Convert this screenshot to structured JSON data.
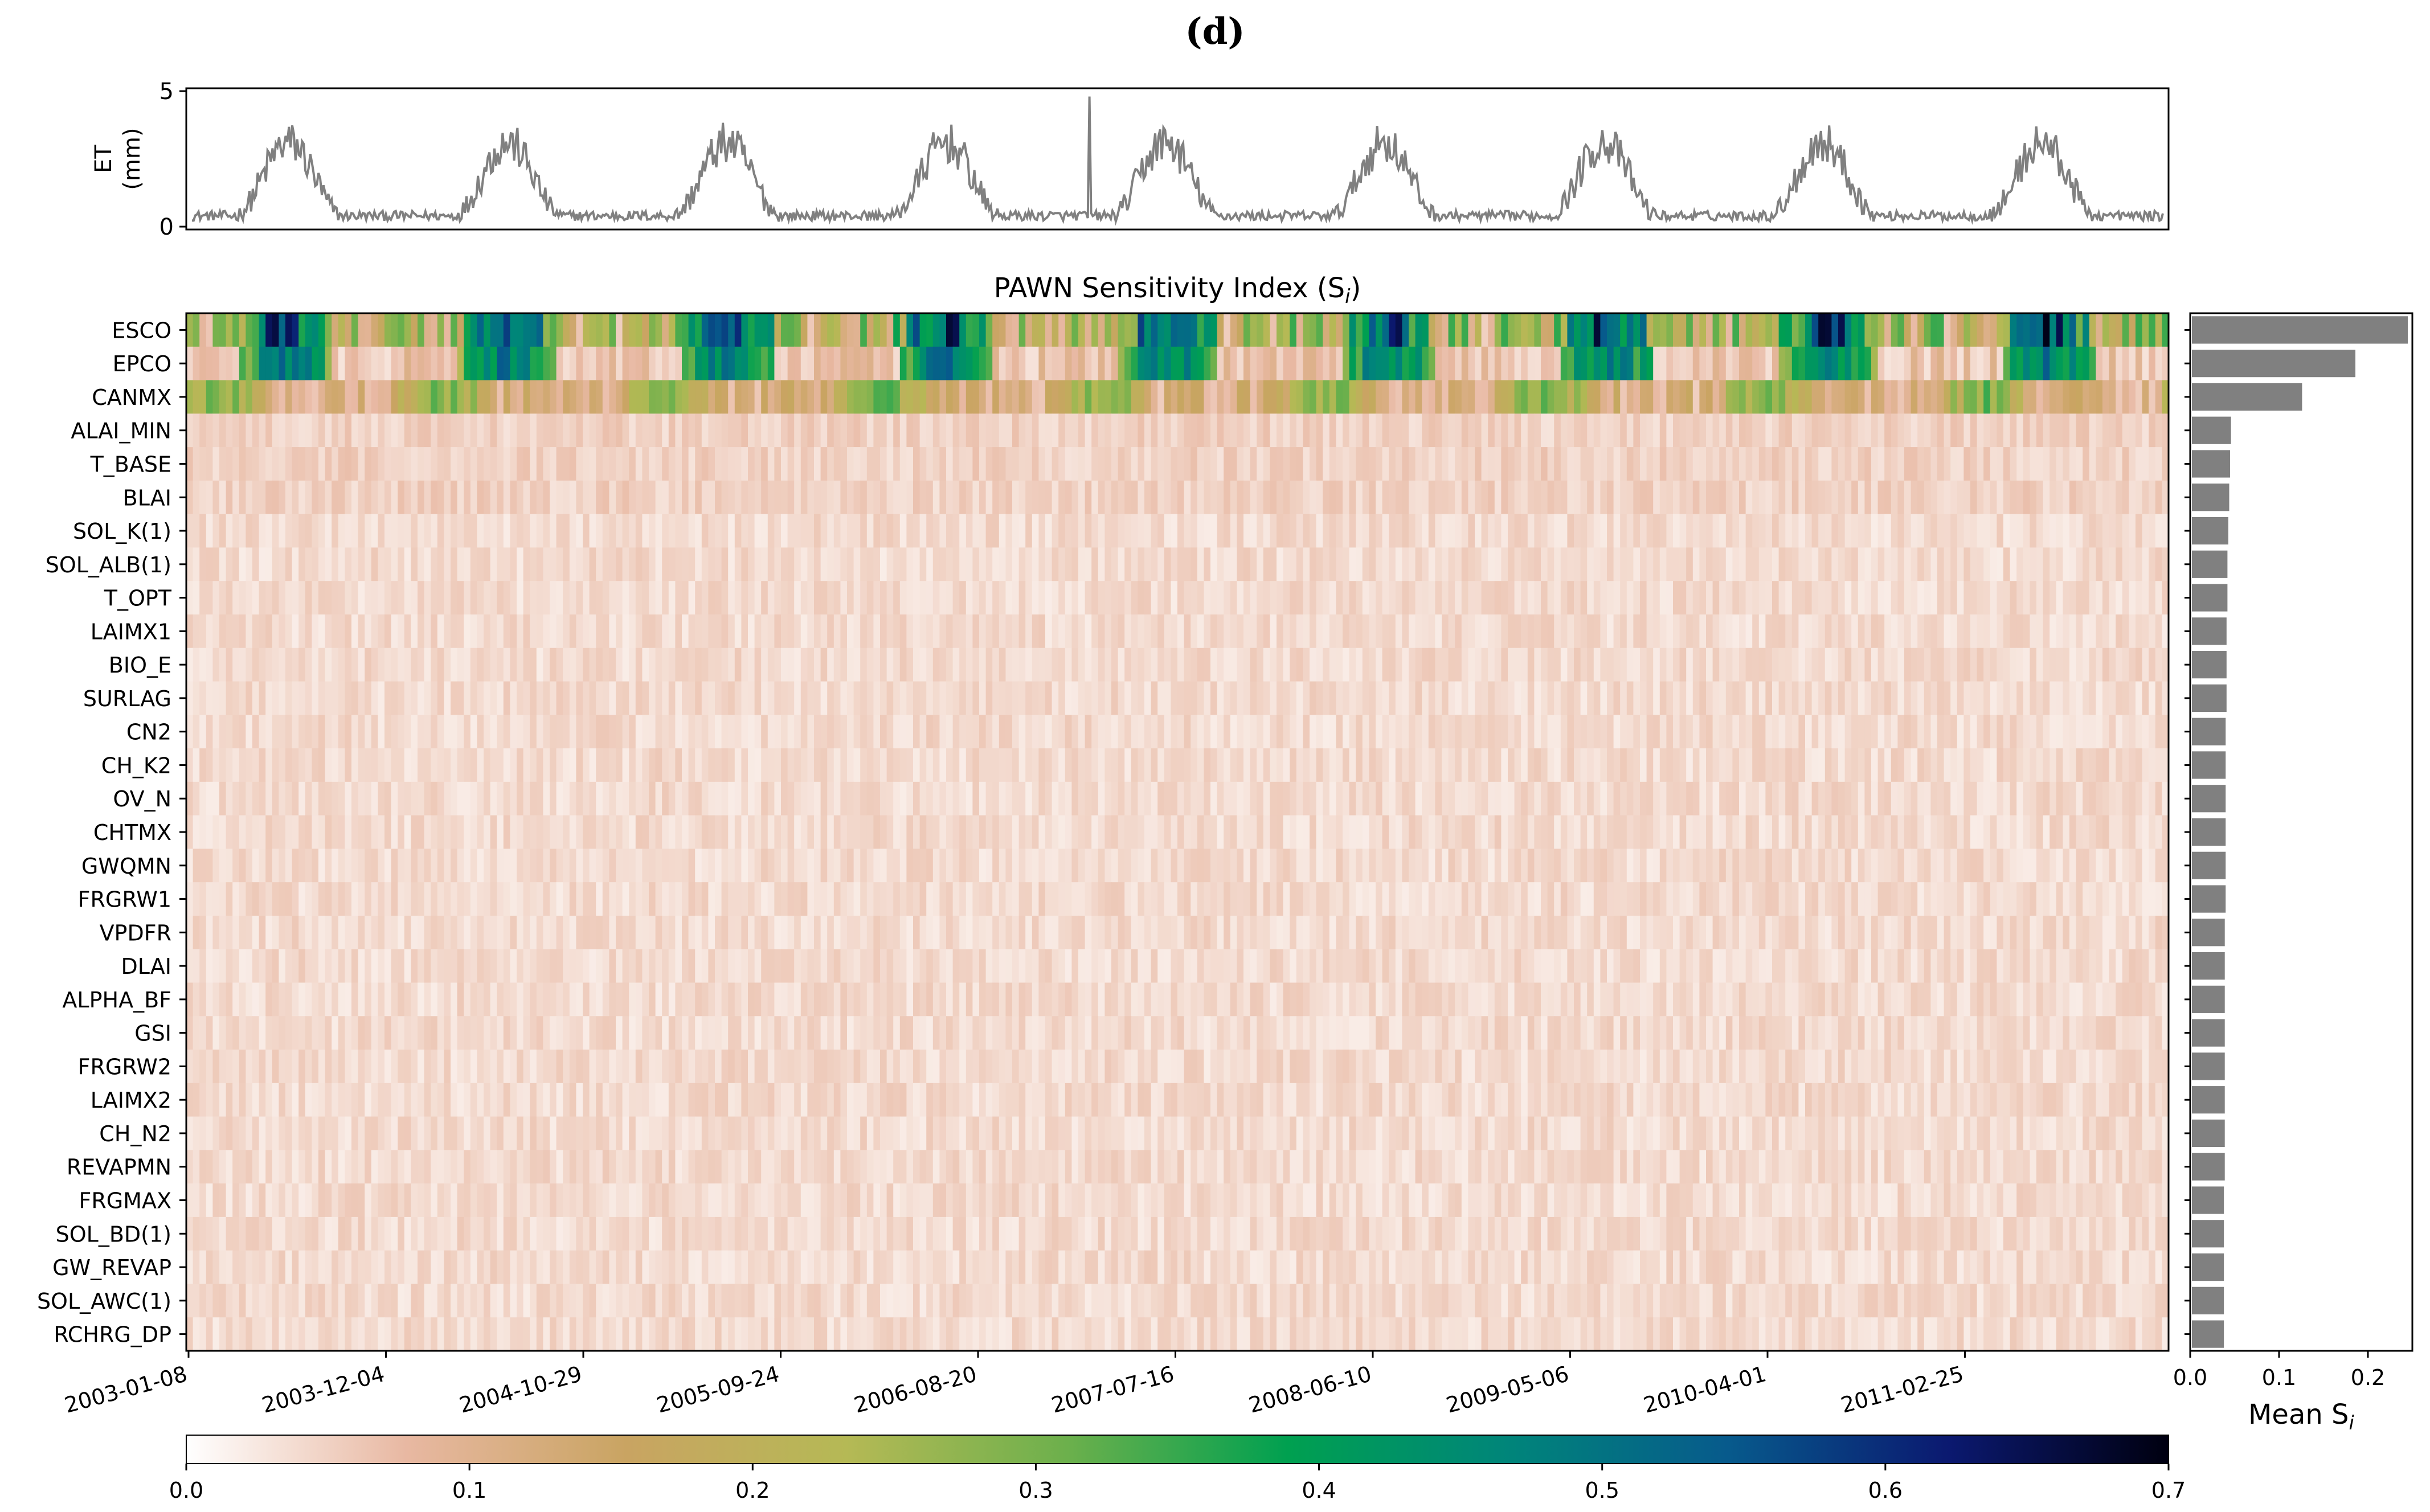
{
  "panel_label": "(d)",
  "colors": {
    "line": "#808080",
    "bar": "#808080",
    "axis": "#000000"
  },
  "chart_data": [
    {
      "type": "line",
      "name": "et-timeseries",
      "ylabel_line1": "ET",
      "ylabel_line2": "(mm)",
      "ylim": [
        0,
        5
      ],
      "yticks": [
        "0",
        "5"
      ],
      "description_of_series": "daily ET, seasonal cycle 2003-2011",
      "seasonal_cycle": {
        "years": 9,
        "base": 0.4,
        "summer_peak": 3.1,
        "max_spike": 4.8
      }
    },
    {
      "type": "heatmap",
      "name": "pawn-heatmap",
      "title_prefix": "PAWN Sensitivity Index (S",
      "title_sub": "i",
      "title_suffix": ")",
      "parameters": [
        "ESCO",
        "EPCO",
        "CANMX",
        "ALAI_MIN",
        "T_BASE",
        "BLAI",
        "SOL_K(1)",
        "SOL_ALB(1)",
        "T_OPT",
        "LAIMX1",
        "BIO_E",
        "SURLAG",
        "CN2",
        "CH_K2",
        "OV_N",
        "CHTMX",
        "GWQMN",
        "FRGRW1",
        "VPDFR",
        "DLAI",
        "ALPHA_BF",
        "GSI",
        "FRGRW2",
        "LAIMX2",
        "CH_N2",
        "REVAPMN",
        "FRGMAX",
        "SOL_BD(1)",
        "GW_REVAP",
        "SOL_AWC(1)",
        "RCHRG_DP"
      ],
      "x_tick_labels": [
        "2003-01-08",
        "2003-12-04",
        "2004-10-29",
        "2005-09-24",
        "2006-08-20",
        "2007-07-16",
        "2008-06-10",
        "2009-05-06",
        "2010-04-01",
        "2011-02-25"
      ],
      "time_columns": 300,
      "clim": [
        0,
        0.7
      ]
    },
    {
      "type": "bar",
      "orientation": "horizontal",
      "name": "mean-si-bars",
      "xlabel_prefix": "Mean S",
      "xlabel_sub": "i",
      "xlim": [
        0,
        0.25
      ],
      "xticks": [
        "0.0",
        "0.1",
        "0.2"
      ],
      "categories": [
        "ESCO",
        "EPCO",
        "CANMX",
        "ALAI_MIN",
        "T_BASE",
        "BLAI",
        "SOL_K(1)",
        "SOL_ALB(1)",
        "T_OPT",
        "LAIMX1",
        "BIO_E",
        "SURLAG",
        "CN2",
        "CH_K2",
        "OV_N",
        "CHTMX",
        "GWQMN",
        "FRGRW1",
        "VPDFR",
        "DLAI",
        "ALPHA_BF",
        "GSI",
        "FRGRW2",
        "LAIMX2",
        "CH_N2",
        "REVAPMN",
        "FRGMAX",
        "SOL_BD(1)",
        "GW_REVAP",
        "SOL_AWC(1)",
        "RCHRG_DP"
      ],
      "values": [
        0.243,
        0.184,
        0.124,
        0.044,
        0.043,
        0.042,
        0.041,
        0.04,
        0.04,
        0.039,
        0.039,
        0.039,
        0.038,
        0.038,
        0.038,
        0.038,
        0.038,
        0.038,
        0.037,
        0.037,
        0.037,
        0.037,
        0.037,
        0.037,
        0.037,
        0.037,
        0.036,
        0.036,
        0.036,
        0.036,
        0.036
      ]
    },
    {
      "type": "colorbar",
      "name": "colorbar",
      "range": [
        0,
        0.7
      ],
      "ticks": [
        "0.0",
        "0.1",
        "0.2",
        "0.3",
        "0.4",
        "0.5",
        "0.6",
        "0.7"
      ],
      "stops": [
        "#ffffff",
        "#e8b8a2",
        "#c9a462",
        "#b5b955",
        "#6cb04c",
        "#00a050",
        "#00857a",
        "#075a8c",
        "#0b1970",
        "#000010"
      ]
    }
  ]
}
